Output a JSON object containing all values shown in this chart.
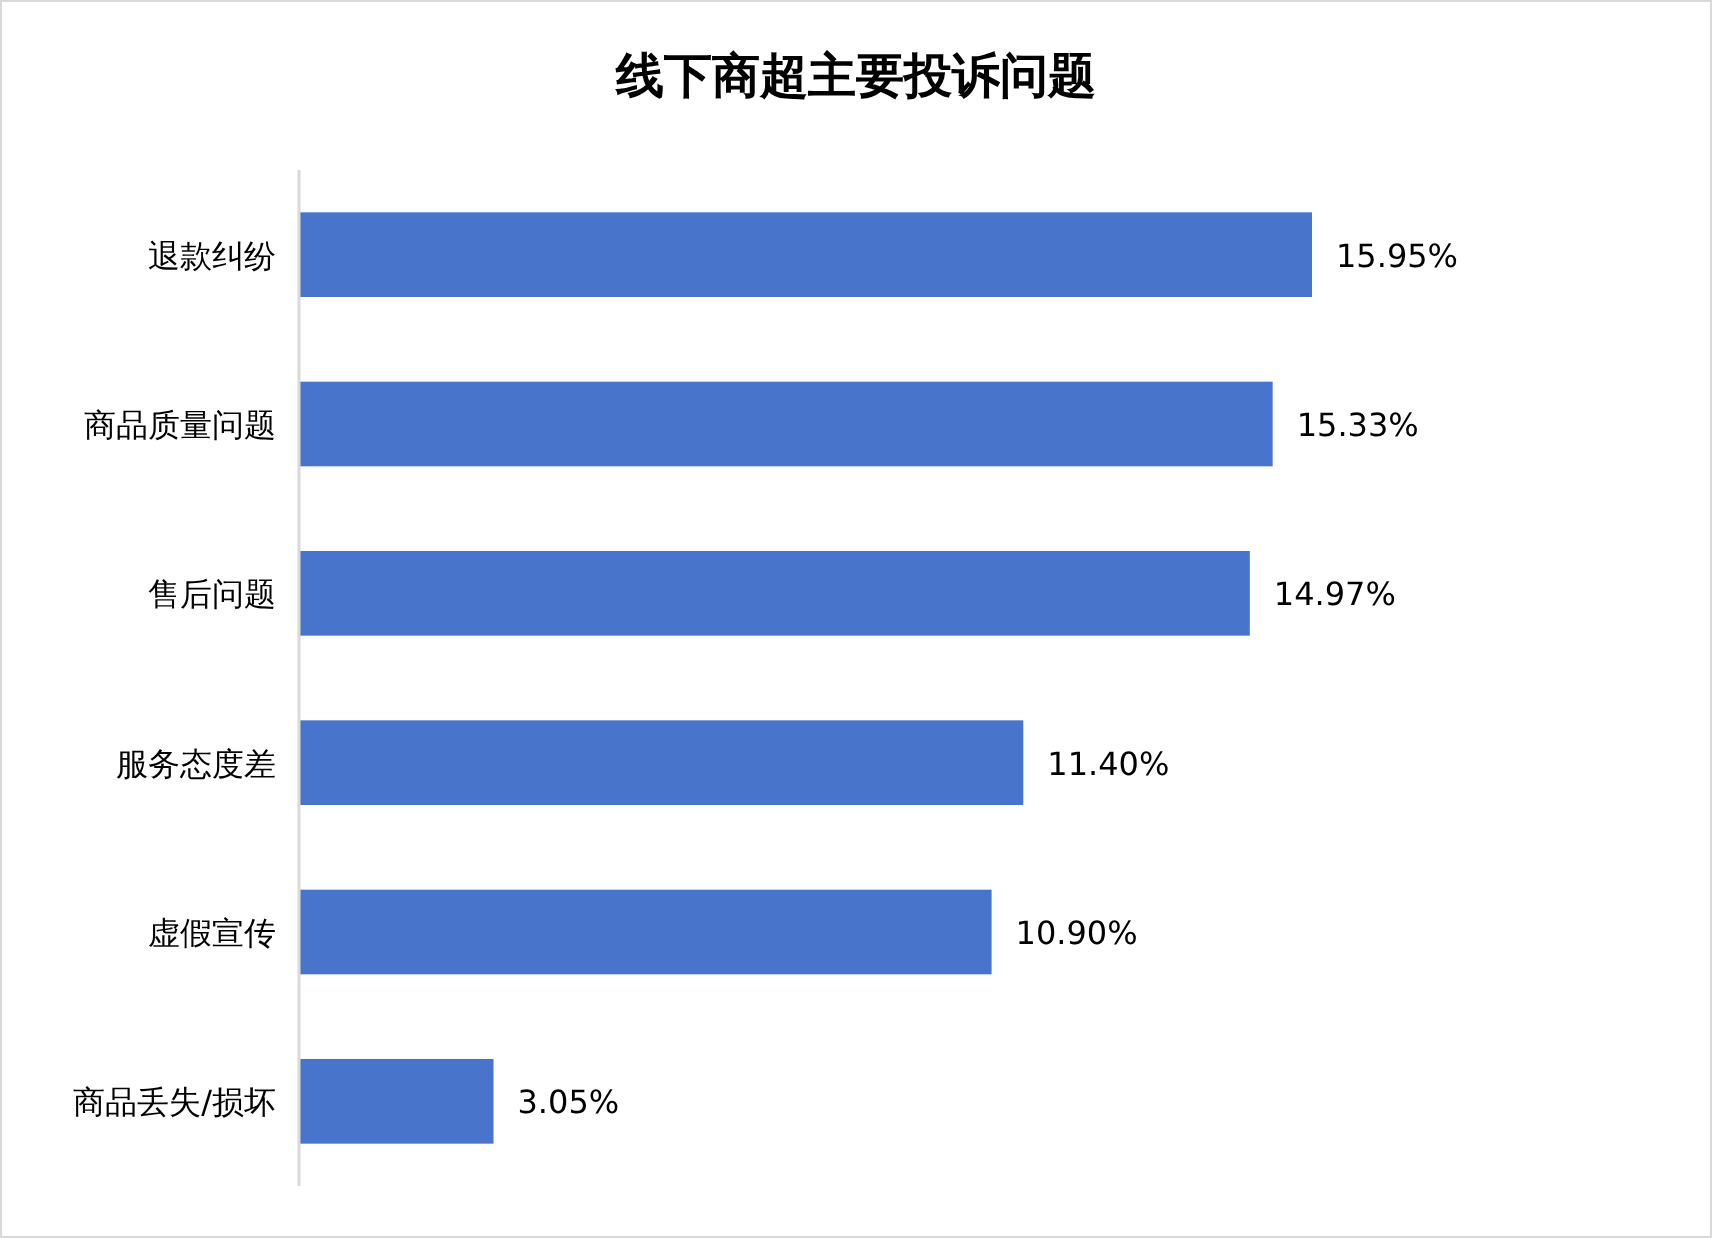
{
  "chart_data": {
    "type": "bar",
    "orientation": "horizontal",
    "title": "线下商超主要投诉问题",
    "categories": [
      "退款纠纷",
      "商品质量问题",
      "售后问题",
      "服务态度差",
      "虚假宣传",
      "商品丢失/损坏"
    ],
    "values": [
      15.95,
      15.33,
      14.97,
      11.4,
      10.9,
      3.05
    ],
    "value_labels": [
      "15.95%",
      "15.33%",
      "14.97%",
      "11.40%",
      "10.90%",
      "3.05%"
    ],
    "color": "#4874cb"
  }
}
